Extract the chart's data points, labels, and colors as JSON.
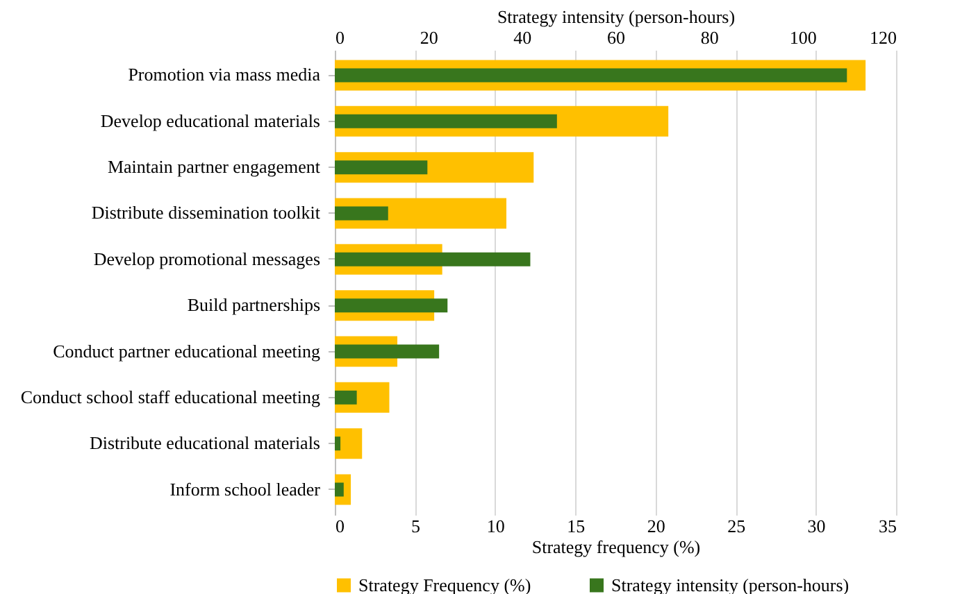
{
  "chart_data": {
    "type": "bar",
    "orientation": "horizontal",
    "xlabel": "Strategy frequency (%)",
    "x2label": "Strategy intensity (person-hours)",
    "categories": [
      "Promotion via mass media",
      "Develop educational materials",
      "Maintain partner engagement",
      "Distribute dissemination toolkit",
      "Develop promotional messages",
      "Build partnerships",
      "Conduct partner educational meeting",
      "Conduct school staff educational meeting",
      "Distribute educational materials",
      "Inform school leader"
    ],
    "series": [
      {
        "name": "Strategy Frequency (%)",
        "color": "#ffc000",
        "values": [
          33.1,
          20.8,
          12.4,
          10.7,
          6.7,
          6.2,
          3.9,
          3.4,
          1.7,
          1.0
        ]
      },
      {
        "name": "Strategy intensity (person-hours)",
        "color": "#38761d",
        "axis": "x2",
        "values": [
          109.5,
          47.5,
          19.8,
          11.4,
          41.8,
          24.1,
          22.3,
          4.7,
          1.2,
          1.9
        ]
      }
    ],
    "xlim": [
      0,
      35
    ],
    "xticks": [
      0,
      5,
      10,
      15,
      20,
      25,
      30,
      35
    ],
    "x2lim": [
      0,
      120
    ],
    "x2ticks": [
      0,
      20,
      40,
      60,
      80,
      100,
      120
    ],
    "grid": "x",
    "legend": "bottom"
  }
}
